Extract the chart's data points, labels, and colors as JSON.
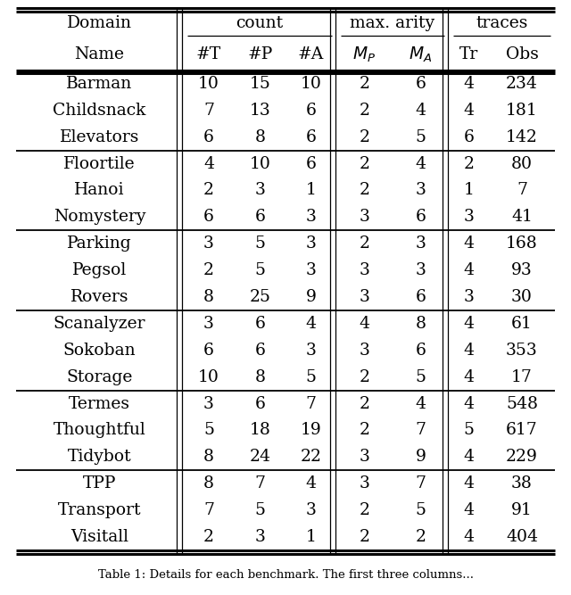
{
  "caption": "Table 1: Details for each benchmark. The first three columns...",
  "groups": [
    {
      "rows": [
        [
          "Barman",
          "10",
          "15",
          "10",
          "2",
          "6",
          "4",
          "234"
        ],
        [
          "Childsnack",
          "7",
          "13",
          "6",
          "2",
          "4",
          "4",
          "181"
        ],
        [
          "Elevators",
          "6",
          "8",
          "6",
          "2",
          "5",
          "6",
          "142"
        ]
      ]
    },
    {
      "rows": [
        [
          "Floortile",
          "4",
          "10",
          "6",
          "2",
          "4",
          "2",
          "80"
        ],
        [
          "Hanoi",
          "2",
          "3",
          "1",
          "2",
          "3",
          "1",
          "7"
        ],
        [
          "Nomystery",
          "6",
          "6",
          "3",
          "3",
          "6",
          "3",
          "41"
        ]
      ]
    },
    {
      "rows": [
        [
          "Parking",
          "3",
          "5",
          "3",
          "2",
          "3",
          "4",
          "168"
        ],
        [
          "Pegsol",
          "2",
          "5",
          "3",
          "3",
          "3",
          "4",
          "93"
        ],
        [
          "Rovers",
          "8",
          "25",
          "9",
          "3",
          "6",
          "3",
          "30"
        ]
      ]
    },
    {
      "rows": [
        [
          "Scanalyzer",
          "3",
          "6",
          "4",
          "4",
          "8",
          "4",
          "61"
        ],
        [
          "Sokoban",
          "6",
          "6",
          "3",
          "3",
          "6",
          "4",
          "353"
        ],
        [
          "Storage",
          "10",
          "8",
          "5",
          "2",
          "5",
          "4",
          "17"
        ]
      ]
    },
    {
      "rows": [
        [
          "Termes",
          "3",
          "6",
          "7",
          "2",
          "4",
          "4",
          "548"
        ],
        [
          "Thoughtful",
          "5",
          "18",
          "19",
          "2",
          "7",
          "5",
          "617"
        ],
        [
          "Tidybot",
          "8",
          "24",
          "22",
          "3",
          "9",
          "4",
          "229"
        ]
      ]
    },
    {
      "rows": [
        [
          "TPP",
          "8",
          "7",
          "4",
          "3",
          "7",
          "4",
          "38"
        ],
        [
          "Transport",
          "7",
          "5",
          "3",
          "2",
          "5",
          "4",
          "91"
        ],
        [
          "Visitall",
          "2",
          "3",
          "1",
          "2",
          "2",
          "4",
          "404"
        ]
      ]
    }
  ],
  "background_color": "#ffffff",
  "font_size": 13.5,
  "caption_font_size": 9.5
}
